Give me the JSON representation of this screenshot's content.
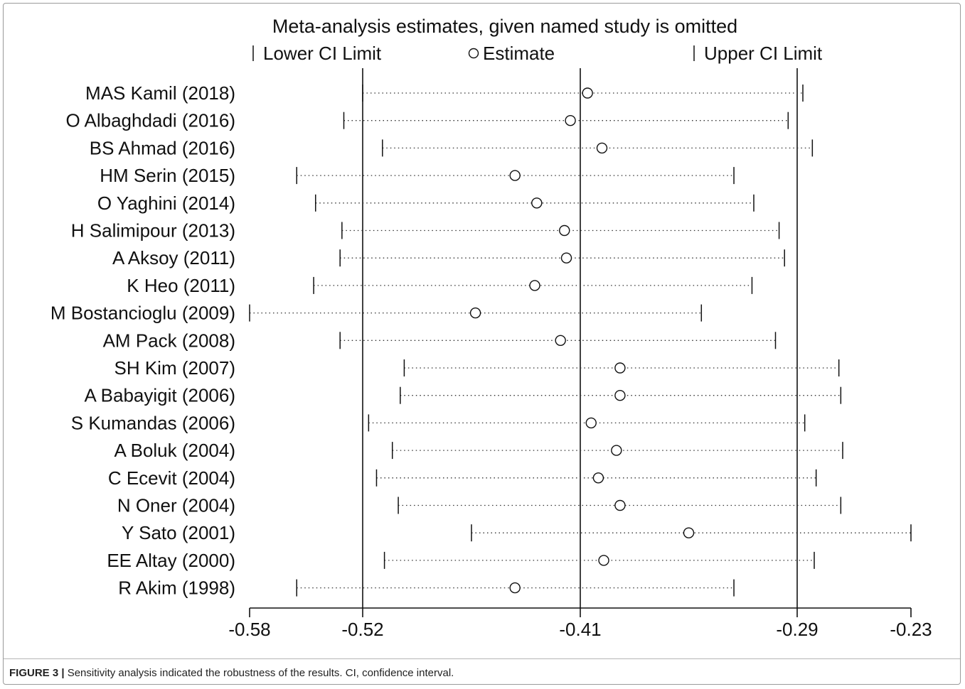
{
  "chart_data": {
    "type": "forest",
    "title": "Meta-analysis estimates, given named study is omitted",
    "legend": {
      "lower": "Lower CI Limit",
      "estimate": "Estimate",
      "upper": "Upper CI Limit"
    },
    "x_ticks": [
      "-0.58",
      "-0.52",
      "-0.41",
      "-0.29",
      "-0.23"
    ],
    "x_tick_values": [
      -0.58,
      -0.52,
      -0.41,
      -0.29,
      -0.23
    ],
    "xlim": [
      -0.58,
      -0.23
    ],
    "reference_lines": [
      -0.52,
      -0.41,
      -0.29
    ],
    "studies": [
      {
        "name": "MAS Kamil (2018)",
        "lower": -0.52,
        "estimate": -0.406,
        "upper": -0.287
      },
      {
        "name": "O Albaghdadi (2016)",
        "lower": -0.53,
        "estimate": -0.415,
        "upper": -0.295
      },
      {
        "name": "BS Ahmad (2016)",
        "lower": -0.51,
        "estimate": -0.398,
        "upper": -0.282
      },
      {
        "name": "HM Serin (2015)",
        "lower": -0.555,
        "estimate": -0.443,
        "upper": -0.325
      },
      {
        "name": "O Yaghini (2014)",
        "lower": -0.545,
        "estimate": -0.432,
        "upper": -0.314
      },
      {
        "name": "H Salimipour (2013)",
        "lower": -0.531,
        "estimate": -0.418,
        "upper": -0.3
      },
      {
        "name": "A Aksoy (2011)",
        "lower": -0.532,
        "estimate": -0.417,
        "upper": -0.297
      },
      {
        "name": "K Heo (2011)",
        "lower": -0.546,
        "estimate": -0.433,
        "upper": -0.315
      },
      {
        "name": "M Bostancioglu (2009)",
        "lower": -0.58,
        "estimate": -0.463,
        "upper": -0.343
      },
      {
        "name": "AM Pack (2008)",
        "lower": -0.532,
        "estimate": -0.42,
        "upper": -0.302
      },
      {
        "name": "SH Kim (2007)",
        "lower": -0.499,
        "estimate": -0.388,
        "upper": -0.268
      },
      {
        "name": "A Babayigit (2006)",
        "lower": -0.501,
        "estimate": -0.388,
        "upper": -0.267
      },
      {
        "name": "S Kumandas (2006)",
        "lower": -0.517,
        "estimate": -0.404,
        "upper": -0.286
      },
      {
        "name": "A Boluk (2004)",
        "lower": -0.505,
        "estimate": -0.39,
        "upper": -0.266
      },
      {
        "name": "C Ecevit (2004)",
        "lower": -0.513,
        "estimate": -0.4,
        "upper": -0.28
      },
      {
        "name": "N Oner (2004)",
        "lower": -0.502,
        "estimate": -0.388,
        "upper": -0.267
      },
      {
        "name": "Y Sato (2001)",
        "lower": -0.465,
        "estimate": -0.35,
        "upper": -0.23
      },
      {
        "name": "EE Altay (2000)",
        "lower": -0.509,
        "estimate": -0.397,
        "upper": -0.281
      },
      {
        "name": "R Akim (1998)",
        "lower": -0.555,
        "estimate": -0.443,
        "upper": -0.325
      }
    ]
  },
  "caption": {
    "label": "FIGURE 3 |",
    "text": " Sensitivity analysis indicated the robustness of the results. CI, confidence interval."
  },
  "colors": {
    "line": "#111111",
    "dots": "#333333",
    "caption_divider": "#b5b5b5",
    "frame": "#9a9a9a"
  }
}
